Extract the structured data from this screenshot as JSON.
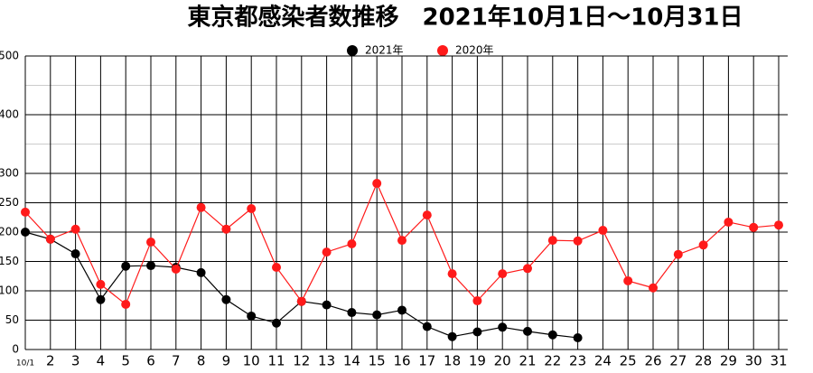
{
  "chart_data": {
    "type": "line",
    "title": "東京都感染者数推移　2021年10月1日～10月31日",
    "categories": [
      "10/1",
      "2",
      "3",
      "4",
      "5",
      "6",
      "7",
      "8",
      "9",
      "10",
      "11",
      "12",
      "13",
      "14",
      "15",
      "16",
      "17",
      "18",
      "19",
      "20",
      "21",
      "22",
      "23",
      "24",
      "25",
      "26",
      "27",
      "28",
      "29",
      "30",
      "31"
    ],
    "series": [
      {
        "name": "2021年",
        "color": "#000000",
        "values": [
          200,
          188,
          163,
          85,
          142,
          143,
          140,
          131,
          85,
          57,
          45,
          82,
          76,
          63,
          59,
          67,
          39,
          22,
          30,
          38,
          31,
          25,
          20,
          null,
          null,
          null,
          null,
          null,
          null,
          null,
          null
        ]
      },
      {
        "name": "2020年",
        "color": "#ff1a1a",
        "values": [
          234,
          188,
          205,
          111,
          77,
          183,
          137,
          242,
          205,
          240,
          140,
          82,
          166,
          180,
          283,
          186,
          229,
          129,
          83,
          129,
          138,
          186,
          185,
          203,
          117,
          105,
          162,
          178,
          217,
          208,
          212
        ]
      }
    ],
    "ylim": [
      0,
      500
    ],
    "yticks": [
      0,
      50,
      100,
      150,
      200,
      250,
      300,
      400,
      500
    ],
    "minor_yticks": [
      350,
      450
    ],
    "grid": true,
    "legend": "top"
  }
}
